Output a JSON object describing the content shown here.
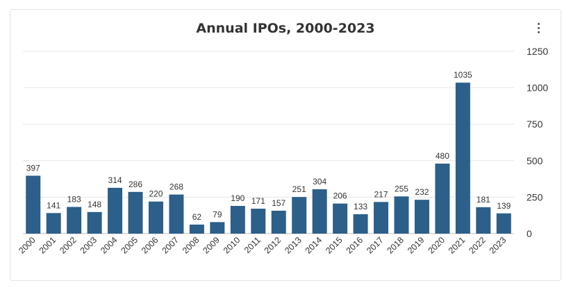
{
  "chart_data": {
    "type": "bar",
    "title": "Annual IPOs, 2000-2023",
    "xlabel": "",
    "ylabel": "",
    "categories": [
      "2000",
      "2001",
      "2002",
      "2003",
      "2004",
      "2005",
      "2006",
      "2007",
      "2008",
      "2009",
      "2010",
      "2011",
      "2012",
      "2013",
      "2014",
      "2015",
      "2016",
      "2017",
      "2018",
      "2019",
      "2020",
      "2021",
      "2022",
      "2023"
    ],
    "values": [
      397,
      141,
      183,
      148,
      314,
      286,
      220,
      268,
      62,
      79,
      190,
      171,
      157,
      251,
      304,
      206,
      133,
      217,
      255,
      232,
      480,
      1035,
      181,
      139
    ],
    "ylim": [
      0,
      1250
    ],
    "y_ticks": [
      "0",
      "250",
      "500",
      "750",
      "1000",
      "1250"
    ],
    "y_axis_position": "right",
    "grid": true,
    "data_labels": true,
    "legend": "none",
    "bar_color": "#2c5f8a"
  },
  "menu": {
    "icon": "more-vertical-icon"
  }
}
